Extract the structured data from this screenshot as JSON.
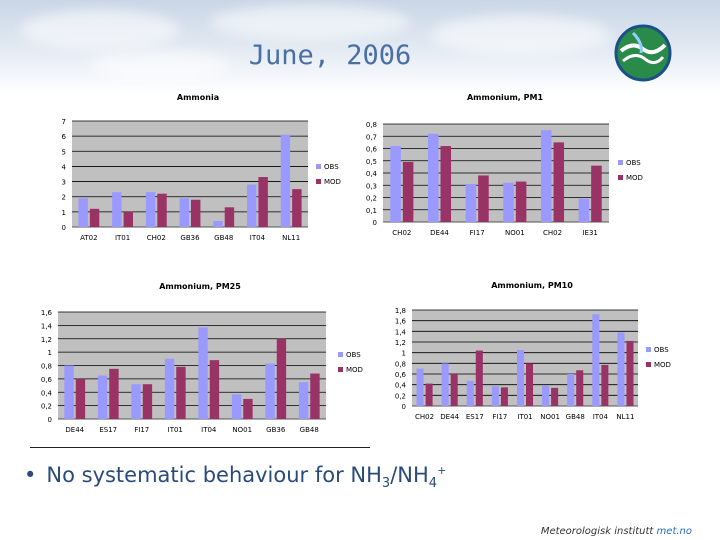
{
  "page": {
    "title": "June, 2006",
    "bullet_prefix": "No systematic behaviour for NH",
    "bullet_sub1": "3",
    "bullet_mid": "/NH",
    "bullet_sub2": "4",
    "bullet_sup": "+",
    "footer_main": "Meteorologisk institutt ",
    "footer_accent": "met.no"
  },
  "colors": {
    "obs": "#9999ff",
    "mod": "#993366",
    "plot_bg": "#c0c0c0"
  },
  "chart_data": [
    {
      "type": "bar",
      "title": "Ammonia",
      "categories": [
        "AT02",
        "IT01",
        "CH02",
        "GB36",
        "GB48",
        "IT04",
        "NL11"
      ],
      "series": [
        {
          "name": "OBS",
          "values": [
            1.9,
            2.3,
            2.3,
            1.9,
            0.4,
            2.8,
            6.1
          ]
        },
        {
          "name": "MOD",
          "values": [
            1.2,
            1.0,
            2.2,
            1.8,
            1.3,
            3.3,
            2.5
          ]
        }
      ],
      "yticks": [
        "0",
        "1",
        "2",
        "3",
        "4",
        "5",
        "6",
        "7"
      ],
      "ylim": [
        0,
        7
      ]
    },
    {
      "type": "bar",
      "title": "Ammonium, PM1",
      "categories": [
        "CH02",
        "DE44",
        "FI17",
        "NO01",
        "CH02",
        "IE31"
      ],
      "series": [
        {
          "name": "OBS",
          "values": [
            0.62,
            0.72,
            0.31,
            0.32,
            0.75,
            0.19
          ]
        },
        {
          "name": "MOD",
          "values": [
            0.49,
            0.62,
            0.38,
            0.33,
            0.65,
            0.46
          ]
        }
      ],
      "yticks": [
        "0",
        "0,1",
        "0,2",
        "0,3",
        "0,4",
        "0,5",
        "0,6",
        "0,7",
        "0,8"
      ],
      "ylim": [
        0,
        0.8
      ]
    },
    {
      "type": "bar",
      "title": "Ammonium, PM25",
      "categories": [
        "DE44",
        "ES17",
        "FI17",
        "IT01",
        "IT04",
        "NO01",
        "GB36",
        "GB48"
      ],
      "series": [
        {
          "name": "OBS",
          "values": [
            0.8,
            0.65,
            0.52,
            0.9,
            1.37,
            0.37,
            0.83,
            0.55
          ]
        },
        {
          "name": "MOD",
          "values": [
            0.6,
            0.75,
            0.52,
            0.78,
            0.88,
            0.3,
            1.2,
            0.68
          ]
        }
      ],
      "yticks": [
        "0",
        "0,2",
        "0,4",
        "0,6",
        "0,8",
        "1",
        "1,2",
        "1,4",
        "1,6"
      ],
      "ylim": [
        0,
        1.6
      ]
    },
    {
      "type": "bar",
      "title": "Ammonium, PM10",
      "categories": [
        "CH02",
        "DE44",
        "ES17",
        "FI17",
        "IT01",
        "NO01",
        "GB48",
        "IT04",
        "NL11"
      ],
      "series": [
        {
          "name": "OBS",
          "values": [
            0.7,
            0.8,
            0.47,
            0.37,
            1.05,
            0.38,
            0.6,
            1.72,
            1.38
          ]
        },
        {
          "name": "MOD",
          "values": [
            0.42,
            0.6,
            1.04,
            0.35,
            0.8,
            0.34,
            0.67,
            0.77,
            1.22
          ]
        }
      ],
      "yticks": [
        "0",
        "0,2",
        "0,4",
        "0,6",
        "0,8",
        "1",
        "1,2",
        "1,4",
        "1,6",
        "1,8"
      ],
      "ylim": [
        0,
        1.8
      ]
    }
  ]
}
